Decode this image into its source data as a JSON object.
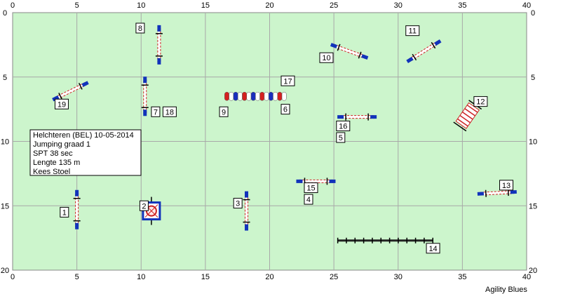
{
  "course": {
    "info_lines": [
      "Helchteren (BEL) 10-05-2014",
      "Jumping graad 1",
      "SPT 38 sec",
      "Lengte 135 m",
      "Kees Stoel"
    ],
    "brand": "Agility Blues"
  },
  "field": {
    "width_m": 40,
    "height_m": 20,
    "x_ticks": [
      0,
      5,
      10,
      15,
      20,
      25,
      30,
      35,
      40
    ],
    "y_ticks": [
      0,
      5,
      10,
      15,
      20
    ],
    "background": "#ccf5cc",
    "grid_color": "#a8a8a8"
  },
  "colors": {
    "pole_red": "#cc2222",
    "wing_blue": "#1133bb",
    "tunnel_red": "#d42020",
    "tunnel_blue": "#1a2ebd",
    "tunnel_white": "#ffffff"
  },
  "obstacles": [
    {
      "id": "jump-1",
      "kind": "jump",
      "x": 5.0,
      "y": 15.3,
      "angle": 90
    },
    {
      "id": "tire-2",
      "kind": "tire",
      "x": 10.8,
      "y": 15.4
    },
    {
      "id": "jump-3",
      "kind": "jump",
      "x": 18.2,
      "y": 15.4,
      "angle": 90
    },
    {
      "id": "jump-4-15",
      "kind": "jump",
      "x": 23.6,
      "y": 13.1,
      "angle": 0
    },
    {
      "id": "jump-7-18",
      "kind": "jump",
      "x": 10.3,
      "y": 6.5,
      "angle": 90
    },
    {
      "id": "jump-8",
      "kind": "jump",
      "x": 11.4,
      "y": 2.5,
      "angle": 90
    },
    {
      "id": "jump-10",
      "kind": "jump",
      "x": 26.2,
      "y": 3.0,
      "angle": 20
    },
    {
      "id": "jump-11",
      "kind": "jump",
      "x": 32.0,
      "y": 3.0,
      "angle": -32
    },
    {
      "id": "wall-12",
      "kind": "wall",
      "x": 35.4,
      "y": 8.0,
      "angle": -55
    },
    {
      "id": "jump-13",
      "kind": "jump",
      "x": 37.7,
      "y": 14.0,
      "angle": -3
    },
    {
      "id": "walk-14",
      "kind": "dogwalk",
      "x1": 25.3,
      "x2": 32.7,
      "y": 17.7
    },
    {
      "id": "jump-5-16",
      "kind": "jump",
      "x": 26.8,
      "y": 8.1,
      "angle": 0
    },
    {
      "id": "tunnel-6-9-17",
      "kind": "tunnel",
      "x1": 16.5,
      "x2": 21.3,
      "y": 6.5
    },
    {
      "id": "jump-19",
      "kind": "jump",
      "x": 4.5,
      "y": 6.1,
      "angle": -26
    }
  ],
  "numbers": [
    {
      "label": "1",
      "x": 3.7,
      "y": 15.5
    },
    {
      "label": "2",
      "x": 9.9,
      "y": 15.0
    },
    {
      "label": "3",
      "x": 17.2,
      "y": 14.8
    },
    {
      "label": "4",
      "x": 22.7,
      "y": 14.5
    },
    {
      "label": "5",
      "x": 25.2,
      "y": 9.7
    },
    {
      "label": "6",
      "x": 20.9,
      "y": 7.5
    },
    {
      "label": "7",
      "x": 10.8,
      "y": 7.7
    },
    {
      "label": "8",
      "x": 9.6,
      "y": 1.2
    },
    {
      "label": "9",
      "x": 16.1,
      "y": 7.7
    },
    {
      "label": "10",
      "x": 23.9,
      "y": 3.5
    },
    {
      "label": "11",
      "x": 30.6,
      "y": 1.4
    },
    {
      "label": "12",
      "x": 35.9,
      "y": 6.9
    },
    {
      "label": "13",
      "x": 37.9,
      "y": 13.4
    },
    {
      "label": "14",
      "x": 32.2,
      "y": 18.3
    },
    {
      "label": "15",
      "x": 22.7,
      "y": 13.6
    },
    {
      "label": "16",
      "x": 25.2,
      "y": 8.8
    },
    {
      "label": "17",
      "x": 20.9,
      "y": 5.3
    },
    {
      "label": "18",
      "x": 11.7,
      "y": 7.7
    },
    {
      "label": "19",
      "x": 3.3,
      "y": 7.1
    }
  ]
}
